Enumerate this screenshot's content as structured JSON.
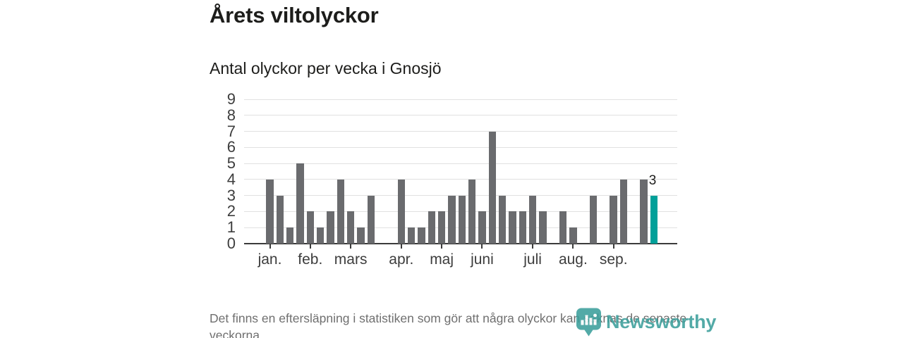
{
  "header": {
    "title": "Årets viltolyckor",
    "subtitle": "Antal olyckor per vecka i Gnosjö"
  },
  "chart_data": {
    "type": "bar",
    "title": "Årets viltolyckor",
    "subtitle": "Antal olyckor per vecka i Gnosjö",
    "ylabel": "",
    "xlabel": "",
    "ylim": [
      0,
      9
    ],
    "yticks": [
      0,
      1,
      2,
      3,
      4,
      5,
      6,
      7,
      8,
      9
    ],
    "grid": "horizontal",
    "values": [
      4,
      3,
      1,
      5,
      2,
      1,
      2,
      4,
      2,
      1,
      3,
      0,
      0,
      4,
      1,
      1,
      2,
      2,
      3,
      3,
      4,
      2,
      7,
      3,
      2,
      2,
      3,
      2,
      0,
      2,
      1,
      0,
      3,
      0,
      3,
      4,
      0,
      4,
      3
    ],
    "xticks": [
      {
        "index": 1,
        "label": "jan."
      },
      {
        "index": 5,
        "label": "feb."
      },
      {
        "index": 9,
        "label": "mars"
      },
      {
        "index": 14,
        "label": "apr."
      },
      {
        "index": 18,
        "label": "maj"
      },
      {
        "index": 22,
        "label": "juni"
      },
      {
        "index": 27,
        "label": "juli"
      },
      {
        "index": 31,
        "label": "aug."
      },
      {
        "index": 35,
        "label": "sep."
      }
    ],
    "last_value_label": "3",
    "colors": {
      "bar": "#6a6b6e",
      "highlight": "#00a099",
      "gridline": "#e1e1e1",
      "axis": "#3b3b3b",
      "tick_label": "#3d3d3d"
    }
  },
  "footer": {
    "note": "Det finns en eftersläpning i statistiken som gör att några olyckor kan saknas de senaste veckorna.",
    "logo_text": "Newsworthy",
    "logo_color": "#3c9f9b"
  }
}
